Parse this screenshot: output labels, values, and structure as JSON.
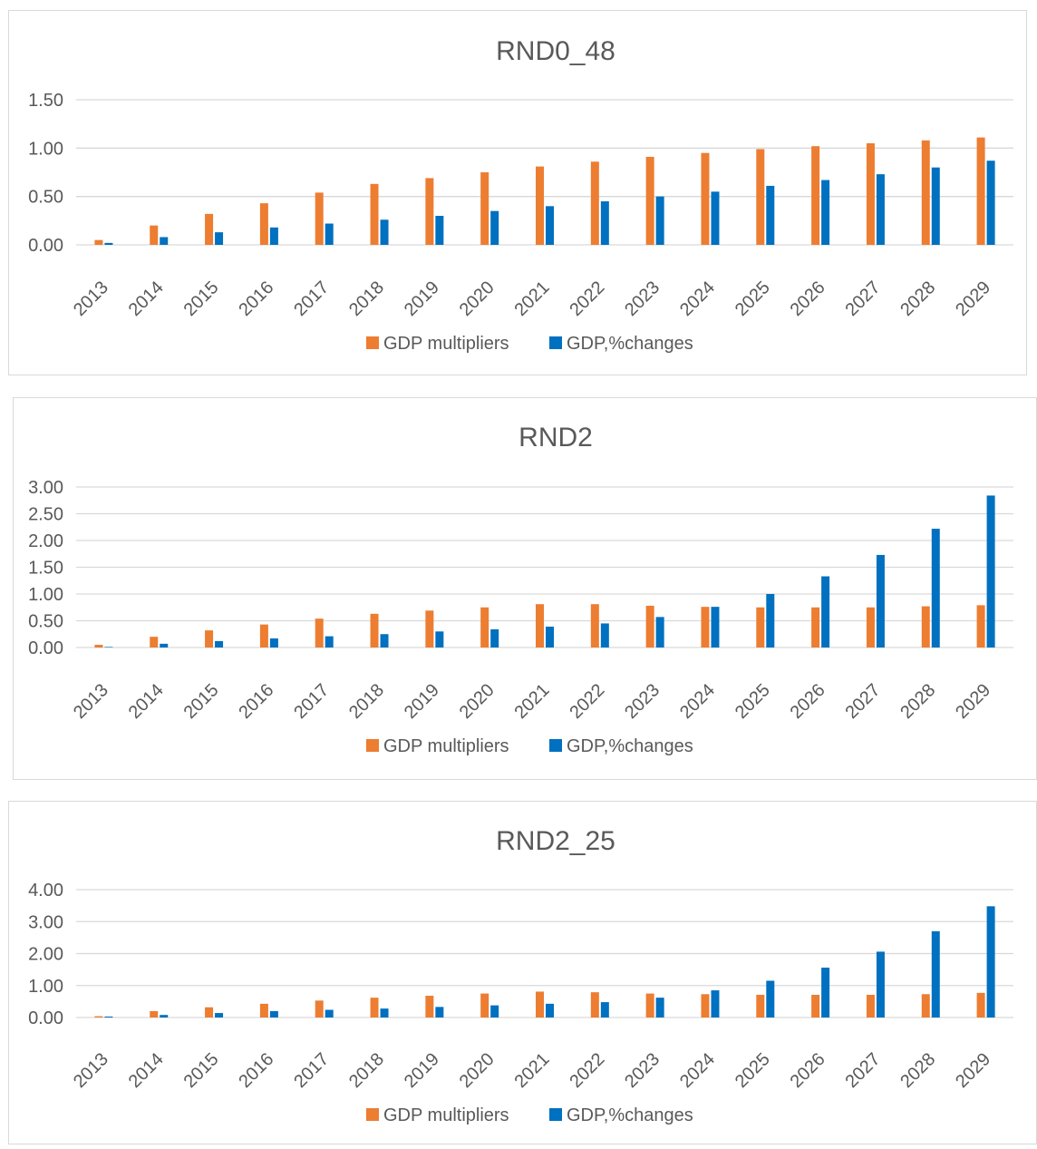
{
  "colors": {
    "multipliers": "#ED7D31",
    "changes": "#0070C0",
    "grid": "#D9D9D9",
    "text": "#595959",
    "border": "#D9D9D9"
  },
  "chart_data": [
    {
      "type": "bar",
      "title": "RND0_48",
      "categories": [
        "2013",
        "2014",
        "2015",
        "2016",
        "2017",
        "2018",
        "2019",
        "2020",
        "2021",
        "2022",
        "2023",
        "2024",
        "2025",
        "2026",
        "2027",
        "2028",
        "2029"
      ],
      "yticks": [
        "0.00",
        "0.50",
        "1.00",
        "1.50"
      ],
      "ylim": [
        0,
        1.5
      ],
      "grid": true,
      "legend_position": "bottom",
      "series": [
        {
          "name": "GDP multipliers",
          "values": [
            0.05,
            0.2,
            0.32,
            0.43,
            0.54,
            0.63,
            0.69,
            0.75,
            0.81,
            0.86,
            0.91,
            0.95,
            0.99,
            1.02,
            1.05,
            1.08,
            1.11
          ]
        },
        {
          "name": "GDP,%changes",
          "values": [
            0.02,
            0.08,
            0.13,
            0.18,
            0.22,
            0.26,
            0.3,
            0.35,
            0.4,
            0.45,
            0.5,
            0.55,
            0.61,
            0.67,
            0.73,
            0.8,
            0.87
          ]
        }
      ]
    },
    {
      "type": "bar",
      "title": "RND2",
      "categories": [
        "2013",
        "2014",
        "2015",
        "2016",
        "2017",
        "2018",
        "2019",
        "2020",
        "2021",
        "2022",
        "2023",
        "2024",
        "2025",
        "2026",
        "2027",
        "2028",
        "2029"
      ],
      "yticks": [
        "0.00",
        "0.50",
        "1.00",
        "1.50",
        "2.00",
        "2.50",
        "3.00"
      ],
      "ylim": [
        0,
        3.0
      ],
      "grid": true,
      "legend_position": "bottom",
      "series": [
        {
          "name": "GDP multipliers",
          "values": [
            0.05,
            0.2,
            0.32,
            0.43,
            0.54,
            0.63,
            0.69,
            0.75,
            0.81,
            0.81,
            0.78,
            0.76,
            0.75,
            0.75,
            0.75,
            0.77,
            0.79
          ]
        },
        {
          "name": "GDP,%changes",
          "values": [
            0.01,
            0.07,
            0.12,
            0.17,
            0.21,
            0.25,
            0.3,
            0.34,
            0.39,
            0.45,
            0.57,
            0.76,
            1.0,
            1.33,
            1.73,
            2.22,
            2.84
          ]
        }
      ]
    },
    {
      "type": "bar",
      "title": "RND2_25",
      "categories": [
        "2013",
        "2014",
        "2015",
        "2016",
        "2017",
        "2018",
        "2019",
        "2020",
        "2021",
        "2022",
        "2023",
        "2024",
        "2025",
        "2026",
        "2027",
        "2028",
        "2029"
      ],
      "yticks": [
        "0.00",
        "1.00",
        "2.00",
        "3.00",
        "4.00"
      ],
      "ylim": [
        0,
        4.0
      ],
      "grid": true,
      "legend_position": "bottom",
      "series": [
        {
          "name": "GDP multipliers",
          "values": [
            0.04,
            0.2,
            0.32,
            0.43,
            0.53,
            0.62,
            0.68,
            0.75,
            0.81,
            0.79,
            0.75,
            0.73,
            0.71,
            0.71,
            0.71,
            0.73,
            0.77
          ]
        },
        {
          "name": "GDP,%changes",
          "values": [
            0.03,
            0.08,
            0.14,
            0.2,
            0.24,
            0.28,
            0.33,
            0.38,
            0.43,
            0.48,
            0.62,
            0.85,
            1.15,
            1.56,
            2.06,
            2.7,
            3.48
          ]
        }
      ]
    }
  ]
}
